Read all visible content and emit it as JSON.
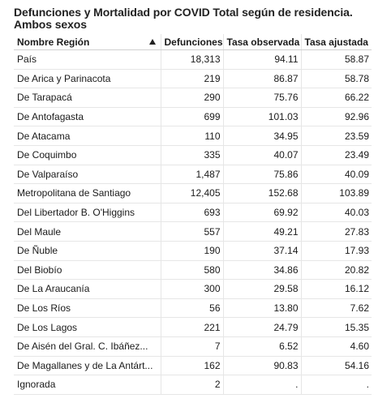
{
  "title": "Defunciones y Mortalidad por COVID Total según de residencia. Ambos sexos",
  "columns": [
    "Nombre Región",
    "Defunciones",
    "Tasa observada",
    "Tasa ajustada"
  ],
  "sort_icon": "sort-ascending-icon",
  "rows": [
    [
      "País",
      "18,313",
      "94.11",
      "58.87"
    ],
    [
      "De Arica y Parinacota",
      "219",
      "86.87",
      "58.78"
    ],
    [
      "De Tarapacá",
      "290",
      "75.76",
      "66.22"
    ],
    [
      "De Antofagasta",
      "699",
      "101.03",
      "92.96"
    ],
    [
      "De Atacama",
      "110",
      "34.95",
      "23.59"
    ],
    [
      "De Coquimbo",
      "335",
      "40.07",
      "23.49"
    ],
    [
      "De Valparaíso",
      "1,487",
      "75.86",
      "40.09"
    ],
    [
      "Metropolitana de Santiago",
      "12,405",
      "152.68",
      "103.89"
    ],
    [
      "Del Libertador B. O'Higgins",
      "693",
      "69.92",
      "40.03"
    ],
    [
      "Del Maule",
      "557",
      "49.21",
      "27.83"
    ],
    [
      "De Ñuble",
      "190",
      "37.14",
      "17.93"
    ],
    [
      "Del Biobío",
      "580",
      "34.86",
      "20.82"
    ],
    [
      "De La Araucanía",
      "300",
      "29.58",
      "16.12"
    ],
    [
      "De Los Ríos",
      "56",
      "13.80",
      "7.62"
    ],
    [
      "De Los Lagos",
      "221",
      "24.79",
      "15.35"
    ],
    [
      "De Aisén del Gral. C. Ibáñez...",
      "7",
      "6.52",
      "4.60"
    ],
    [
      "De Magallanes y de La Antárt...",
      "162",
      "90.83",
      "54.16"
    ],
    [
      "Ignorada",
      "2",
      ".",
      "."
    ]
  ]
}
